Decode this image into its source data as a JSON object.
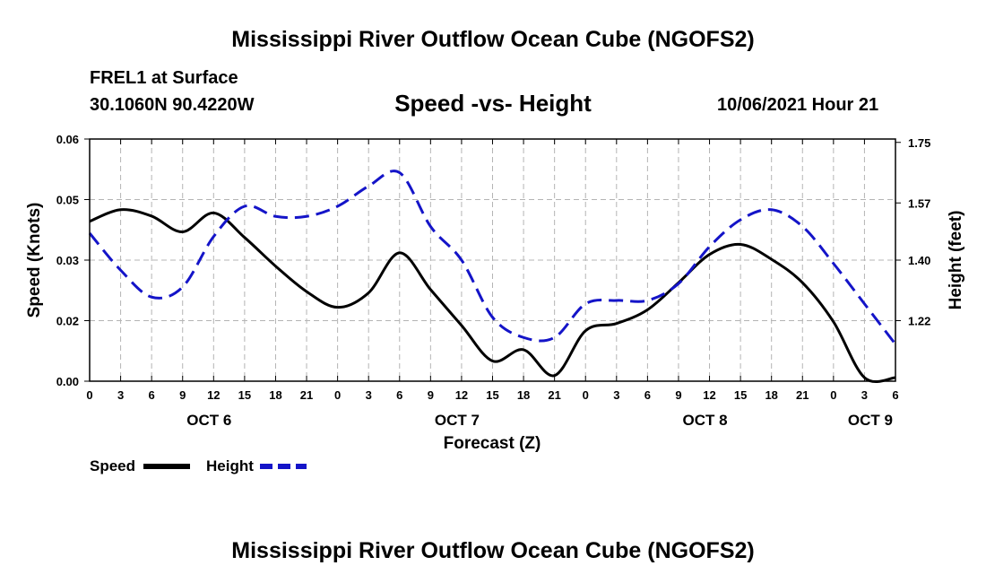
{
  "header": {
    "title": "Mississippi River Outflow Ocean Cube (NGOFS2)",
    "station": "FREL1 at Surface",
    "coords": "30.1060N  90.4220W",
    "subtitle": "Speed -vs- Height",
    "datetime": "10/06/2021 Hour 21",
    "footer_title": "Mississippi River Outflow Ocean Cube (NGOFS2)"
  },
  "colors": {
    "speed": "#000000",
    "height": "#1414c8",
    "grid": "#b4b4b4"
  },
  "chart_data": {
    "type": "line",
    "title": "Speed -vs- Height",
    "xlabel": "Forecast (Z)",
    "ylabel": "Speed (Knots)",
    "y2label": "Height (feet)",
    "x_unit": "forecast hour (0 = Oct 6 00Z)",
    "xlim": [
      0,
      78
    ],
    "ylim": [
      0.0,
      0.06
    ],
    "y2lim": [
      1.04,
      1.76
    ],
    "x_ticks": [
      0,
      3,
      6,
      9,
      12,
      15,
      18,
      21,
      24,
      27,
      30,
      33,
      36,
      39,
      42,
      45,
      48,
      51,
      54,
      57,
      60,
      63,
      66,
      69,
      72,
      75,
      78
    ],
    "x_tick_labels": [
      "0",
      "3",
      "6",
      "9",
      "12",
      "15",
      "18",
      "21",
      "0",
      "3",
      "6",
      "9",
      "12",
      "15",
      "18",
      "21",
      "0",
      "3",
      "6",
      "9",
      "12",
      "15",
      "18",
      "21",
      "0",
      "3",
      "6"
    ],
    "y_tick_labels": [
      "0.00",
      "0.02",
      "0.03",
      "0.05",
      "0.06"
    ],
    "y2_tick_labels": [
      "1.22",
      "1.40",
      "1.57",
      "1.75"
    ],
    "day_labels": [
      {
        "label": "OCT 6",
        "x": 12
      },
      {
        "label": "OCT 7",
        "x": 36
      },
      {
        "label": "OCT 8",
        "x": 60
      },
      {
        "label": "OCT 9",
        "x": 76
      }
    ],
    "grid": true,
    "legend": {
      "position": "bottom-left",
      "speed_label": "Speed",
      "height_label": "Height"
    },
    "series": [
      {
        "name": "Speed",
        "axis": "left",
        "style": "solid",
        "x": [
          0,
          3,
          6,
          9,
          12,
          15,
          18,
          21,
          24,
          27,
          30,
          33,
          36,
          39,
          42,
          45,
          48,
          51,
          54,
          57,
          60,
          63,
          66,
          69,
          72,
          75,
          78
        ],
        "values": [
          0.0396,
          0.0425,
          0.0409,
          0.037,
          0.0417,
          0.0356,
          0.0285,
          0.0222,
          0.0183,
          0.0219,
          0.0318,
          0.0227,
          0.0138,
          0.005,
          0.0078,
          0.0014,
          0.0125,
          0.0143,
          0.0177,
          0.0244,
          0.0314,
          0.0339,
          0.0302,
          0.0244,
          0.0147,
          0.0009,
          0.0009
        ]
      },
      {
        "name": "Height",
        "axis": "right",
        "style": "dashed",
        "x": [
          0,
          3,
          6,
          9,
          12,
          15,
          18,
          21,
          24,
          27,
          30,
          33,
          36,
          39,
          42,
          45,
          48,
          51,
          54,
          57,
          60,
          63,
          66,
          69,
          72,
          75,
          78
        ],
        "values": [
          1.48,
          1.37,
          1.29,
          1.32,
          1.47,
          1.56,
          1.53,
          1.53,
          1.56,
          1.62,
          1.66,
          1.5,
          1.4,
          1.23,
          1.17,
          1.17,
          1.27,
          1.28,
          1.28,
          1.33,
          1.44,
          1.52,
          1.55,
          1.5,
          1.39,
          1.27,
          1.15
        ]
      }
    ]
  }
}
